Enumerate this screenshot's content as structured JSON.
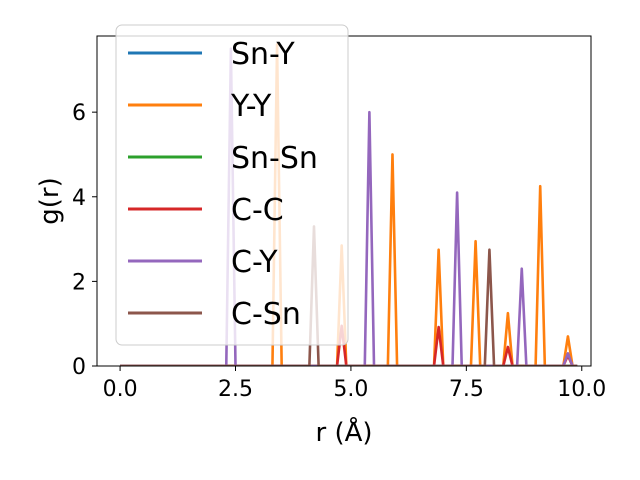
{
  "chart_data": {
    "type": "line",
    "xlabel": "r (Å)",
    "ylabel": "g(r)",
    "xlim": [
      -0.5,
      10.2
    ],
    "ylim": [
      0,
      7.8
    ],
    "xticks": [
      0.0,
      2.5,
      5.0,
      7.5,
      10.0
    ],
    "xtick_labels": [
      "0.0",
      "2.5",
      "5.0",
      "7.5",
      "10.0"
    ],
    "yticks": [
      0,
      2,
      4,
      6
    ],
    "ytick_labels": [
      "0",
      "2",
      "4",
      "6"
    ],
    "grid": false,
    "legend_position": "upper-left",
    "series": [
      {
        "name": "Sn-Y",
        "color": "#1f77b4",
        "peaks": []
      },
      {
        "name": "Y-Y",
        "color": "#ff7f0e",
        "peaks": [
          [
            3.4,
            7.6
          ],
          [
            4.8,
            2.85
          ],
          [
            5.9,
            5.0
          ],
          [
            6.9,
            2.75
          ],
          [
            7.7,
            2.95
          ],
          [
            8.4,
            1.25
          ],
          [
            9.1,
            4.25
          ],
          [
            9.7,
            0.7
          ]
        ]
      },
      {
        "name": "Sn-Sn",
        "color": "#2ca02c",
        "peaks": []
      },
      {
        "name": "C-C",
        "color": "#d62728",
        "peaks": [
          [
            4.8,
            0.95
          ],
          [
            6.9,
            0.92
          ],
          [
            8.4,
            0.45
          ],
          [
            9.7,
            0.25
          ]
        ]
      },
      {
        "name": "C-Y",
        "color": "#9467bd",
        "peaks": [
          [
            2.4,
            7.5
          ],
          [
            5.4,
            6.0
          ],
          [
            7.3,
            4.1
          ],
          [
            8.7,
            2.3
          ],
          [
            9.7,
            0.3
          ]
        ]
      },
      {
        "name": "C-Sn",
        "color": "#8c564b",
        "peaks": [
          [
            4.2,
            3.3
          ],
          [
            8.0,
            2.75
          ]
        ]
      }
    ]
  }
}
